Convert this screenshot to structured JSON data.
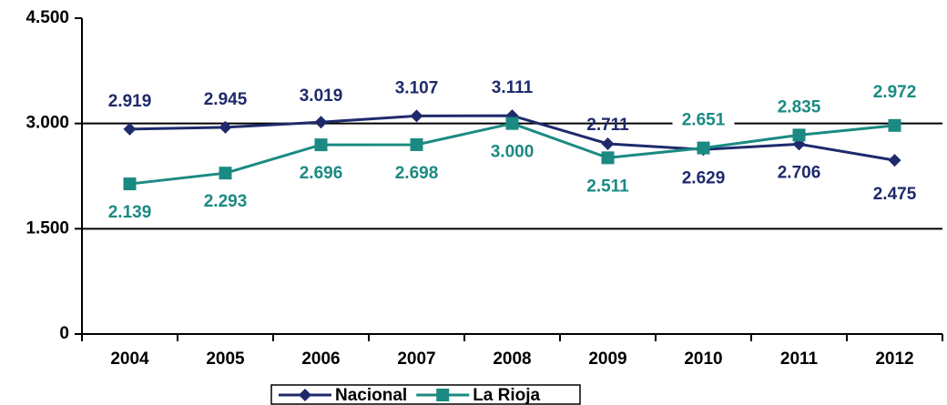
{
  "chart_data": {
    "type": "line",
    "categories": [
      "2004",
      "2005",
      "2006",
      "2007",
      "2008",
      "2009",
      "2010",
      "2011",
      "2012"
    ],
    "series": [
      {
        "name": "Nacional",
        "color": "#1f2a6b",
        "marker": "diamond",
        "values": [
          2919,
          2945,
          3019,
          3107,
          3111,
          2711,
          2629,
          2706,
          2475
        ],
        "value_labels": [
          "2.919",
          "2.945",
          "3.019",
          "3.107",
          "3.111",
          "2.711",
          "2.629",
          "2.706",
          "2.475"
        ]
      },
      {
        "name": "La Rioja",
        "color": "#1b8a82",
        "marker": "square",
        "values": [
          2139,
          2293,
          2696,
          2698,
          3000,
          2511,
          2651,
          2835,
          2972
        ],
        "value_labels": [
          "2.139",
          "2.293",
          "2.696",
          "2.698",
          "3.000",
          "2.511",
          "2.651",
          "2.835",
          "2.972"
        ]
      }
    ],
    "ylim": [
      0,
      4500
    ],
    "yticks": [
      0,
      {
        "value": 1500,
        "label": "1.500"
      },
      {
        "value": 3000,
        "label": "3.000"
      },
      {
        "value": 4500,
        "label": "4.500"
      }
    ],
    "grid": true,
    "legend": "bottom"
  }
}
